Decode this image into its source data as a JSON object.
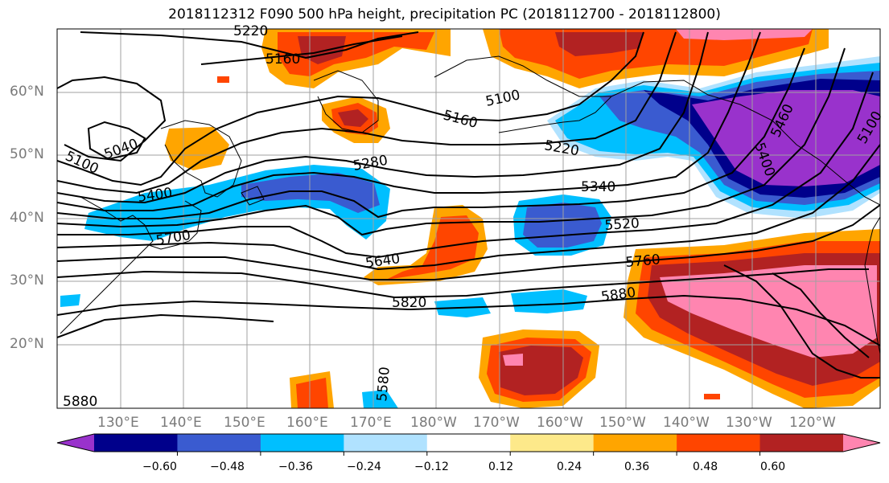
{
  "title": "2018112312 F090 500 hPa height, precipitation PC (2018112700 - 2018112800)",
  "lat_labels": [
    "60°N",
    "50°N",
    "40°N",
    "30°N",
    "20°N"
  ],
  "lon_labels": [
    "130°E",
    "140°E",
    "150°E",
    "160°E",
    "170°E",
    "180°W",
    "170°W",
    "160°W",
    "150°W",
    "140°W",
    "130°W",
    "120°W"
  ],
  "contour_labels": [
    {
      "text": "5220"
    },
    {
      "text": "5160"
    },
    {
      "text": "5100"
    },
    {
      "text": "5040"
    },
    {
      "text": "5100"
    },
    {
      "text": "5400"
    },
    {
      "text": "5700"
    },
    {
      "text": "5280"
    },
    {
      "text": "5160"
    },
    {
      "text": "5100"
    },
    {
      "text": "5220"
    },
    {
      "text": "5340"
    },
    {
      "text": "5520"
    },
    {
      "text": "5640"
    },
    {
      "text": "5760"
    },
    {
      "text": "5820"
    },
    {
      "text": "5880"
    },
    {
      "text": "5460"
    },
    {
      "text": "5400"
    },
    {
      "text": "5580"
    },
    {
      "text": "5880"
    }
  ],
  "colorbar": {
    "ticks": [
      "−0.60",
      "−0.48",
      "−0.36",
      "−0.24",
      "−0.12",
      "0.12",
      "0.24",
      "0.36",
      "0.48",
      "0.60"
    ],
    "colors": [
      "#9932cc",
      "#00008b",
      "#3a5bd0",
      "#00bfff",
      "#b0e2ff",
      "#ffffff",
      "#fde98a",
      "#ffa500",
      "#ff4500",
      "#b22222",
      "#ff85b0"
    ]
  }
}
